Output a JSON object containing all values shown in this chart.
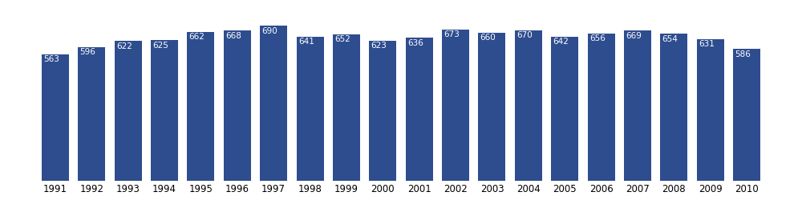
{
  "years": [
    1991,
    1992,
    1993,
    1994,
    1995,
    1996,
    1997,
    1998,
    1999,
    2000,
    2001,
    2002,
    2003,
    2004,
    2005,
    2006,
    2007,
    2008,
    2009,
    2010
  ],
  "values": [
    563,
    596,
    622,
    625,
    662,
    668,
    690,
    641,
    652,
    623,
    636,
    673,
    660,
    670,
    642,
    656,
    669,
    654,
    631,
    586
  ],
  "bar_color": "#2e4d8f",
  "label_color": "#ffffff",
  "label_fontsize": 7.5,
  "tick_fontsize": 8.5,
  "background_color": "#ffffff",
  "ylim": [
    0,
    780
  ],
  "bar_width": 0.75
}
